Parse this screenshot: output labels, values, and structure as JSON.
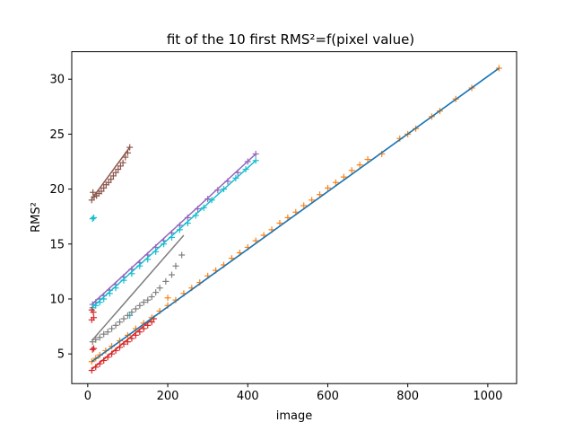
{
  "chart_data": {
    "type": "scatter",
    "title": "fit of the 10 first RMS²=f(pixel value)",
    "xlabel": "image",
    "ylabel": "RMS²",
    "xlim": [
      -40,
      1072
    ],
    "ylim": [
      2.3,
      32.5
    ],
    "xticks": [
      0,
      200,
      400,
      600,
      800,
      1000
    ],
    "yticks": [
      5,
      10,
      15,
      20,
      25,
      30
    ],
    "legend": "none",
    "grid": false,
    "series": [
      {
        "name": "series-brown",
        "color": "#8c564b",
        "fit": [
          [
            10,
            19.1
          ],
          [
            105,
            23.8
          ]
        ],
        "points": [
          [
            10,
            19.0
          ],
          [
            13,
            19.7
          ],
          [
            16,
            19.3
          ],
          [
            22,
            19.4
          ],
          [
            28,
            19.6
          ],
          [
            34,
            19.8
          ],
          [
            40,
            20.1
          ],
          [
            46,
            20.4
          ],
          [
            52,
            20.6
          ],
          [
            58,
            20.9
          ],
          [
            64,
            21.2
          ],
          [
            70,
            21.5
          ],
          [
            76,
            21.8
          ],
          [
            82,
            22.1
          ],
          [
            88,
            22.4
          ],
          [
            94,
            22.9
          ],
          [
            100,
            23.3
          ],
          [
            105,
            23.8
          ]
        ]
      },
      {
        "name": "series-purple",
        "color": "#9467bd",
        "fit": [
          [
            10,
            9.5
          ],
          [
            420,
            23.2
          ]
        ],
        "points": [
          [
            12,
            9.5
          ],
          [
            20,
            9.7
          ],
          [
            30,
            10.0
          ],
          [
            40,
            10.3
          ],
          [
            55,
            10.8
          ],
          [
            70,
            11.3
          ],
          [
            90,
            12.0
          ],
          [
            110,
            12.7
          ],
          [
            130,
            13.3
          ],
          [
            150,
            14.0
          ],
          [
            170,
            14.7
          ],
          [
            190,
            15.3
          ],
          [
            210,
            16.0
          ],
          [
            230,
            16.7
          ],
          [
            250,
            17.4
          ],
          [
            275,
            18.2
          ],
          [
            300,
            19.1
          ],
          [
            325,
            19.9
          ],
          [
            350,
            20.7
          ],
          [
            375,
            21.5
          ],
          [
            400,
            22.5
          ],
          [
            420,
            23.2
          ]
        ]
      },
      {
        "name": "series-cyan",
        "color": "#17becf",
        "fit": [
          [
            10,
            9.2
          ],
          [
            420,
            22.6
          ]
        ],
        "points": [
          [
            12,
            17.3
          ],
          [
            15,
            17.4
          ],
          [
            12,
            9.2
          ],
          [
            20,
            9.4
          ],
          [
            30,
            9.7
          ],
          [
            40,
            10.0
          ],
          [
            55,
            10.5
          ],
          [
            70,
            11.0
          ],
          [
            90,
            11.7
          ],
          [
            110,
            12.3
          ],
          [
            130,
            13.0
          ],
          [
            150,
            13.6
          ],
          [
            170,
            14.3
          ],
          [
            190,
            15.0
          ],
          [
            210,
            15.6
          ],
          [
            230,
            16.3
          ],
          [
            250,
            16.9
          ],
          [
            270,
            17.6
          ],
          [
            290,
            18.3
          ],
          [
            310,
            19.0
          ],
          [
            340,
            20.0
          ],
          [
            370,
            21.0
          ],
          [
            395,
            21.8
          ],
          [
            420,
            22.6
          ],
          [
            105,
            8.5
          ]
        ]
      },
      {
        "name": "series-gray",
        "color": "#7f7f7f",
        "fit": [
          [
            10,
            6.2
          ],
          [
            240,
            15.8
          ]
        ],
        "points": [
          [
            12,
            6.1
          ],
          [
            20,
            6.3
          ],
          [
            30,
            6.5
          ],
          [
            40,
            6.8
          ],
          [
            50,
            7.0
          ],
          [
            60,
            7.3
          ],
          [
            70,
            7.6
          ],
          [
            80,
            7.9
          ],
          [
            90,
            8.2
          ],
          [
            100,
            8.5
          ],
          [
            110,
            8.8
          ],
          [
            120,
            9.1
          ],
          [
            130,
            9.4
          ],
          [
            140,
            9.7
          ],
          [
            150,
            9.9
          ],
          [
            160,
            10.2
          ],
          [
            170,
            10.6
          ],
          [
            180,
            11.0
          ],
          [
            195,
            11.6
          ],
          [
            210,
            12.2
          ],
          [
            220,
            13.0
          ],
          [
            235,
            14.0
          ]
        ]
      },
      {
        "name": "series-red",
        "color": "#d62728",
        "fit": [
          [
            10,
            3.6
          ],
          [
            165,
            8.3
          ]
        ],
        "points": [
          [
            10,
            9.0
          ],
          [
            14,
            8.8
          ],
          [
            10,
            8.1
          ],
          [
            15,
            8.3
          ],
          [
            10,
            3.5
          ],
          [
            20,
            3.8
          ],
          [
            30,
            4.1
          ],
          [
            40,
            4.4
          ],
          [
            50,
            4.7
          ],
          [
            60,
            5.0
          ],
          [
            70,
            5.3
          ],
          [
            80,
            5.6
          ],
          [
            90,
            5.9
          ],
          [
            100,
            6.1
          ],
          [
            110,
            6.4
          ],
          [
            120,
            6.7
          ],
          [
            130,
            7.0
          ],
          [
            140,
            7.3
          ],
          [
            150,
            7.6
          ],
          [
            160,
            7.9
          ],
          [
            165,
            8.2
          ],
          [
            12,
            5.4
          ],
          [
            15,
            5.5
          ]
        ]
      },
      {
        "name": "series-orange",
        "color": "#ff7f0e",
        "fit": [
          [
            10,
            4.3
          ],
          [
            1028,
            31.0
          ]
        ],
        "points": [
          [
            10,
            4.3
          ],
          [
            20,
            4.6
          ],
          [
            30,
            4.9
          ],
          [
            45,
            5.3
          ],
          [
            60,
            5.7
          ],
          [
            80,
            6.2
          ],
          [
            100,
            6.7
          ],
          [
            120,
            7.3
          ],
          [
            140,
            7.8
          ],
          [
            160,
            8.3
          ],
          [
            180,
            8.9
          ],
          [
            200,
            9.4
          ],
          [
            220,
            9.9
          ],
          [
            240,
            10.5
          ],
          [
            260,
            11.0
          ],
          [
            280,
            11.5
          ],
          [
            300,
            12.1
          ],
          [
            320,
            12.6
          ],
          [
            340,
            13.1
          ],
          [
            360,
            13.7
          ],
          [
            380,
            14.2
          ],
          [
            400,
            14.7
          ],
          [
            420,
            15.3
          ],
          [
            440,
            15.8
          ],
          [
            460,
            16.3
          ],
          [
            480,
            16.9
          ],
          [
            500,
            17.4
          ],
          [
            520,
            17.9
          ],
          [
            540,
            18.5
          ],
          [
            560,
            19.0
          ],
          [
            580,
            19.5
          ],
          [
            600,
            20.1
          ],
          [
            620,
            20.6
          ],
          [
            640,
            21.1
          ],
          [
            660,
            21.7
          ],
          [
            680,
            22.2
          ],
          [
            700,
            22.7
          ],
          [
            735,
            23.2
          ],
          [
            780,
            24.6
          ],
          [
            800,
            25.0
          ],
          [
            820,
            25.5
          ],
          [
            860,
            26.6
          ],
          [
            880,
            27.1
          ],
          [
            920,
            28.2
          ],
          [
            960,
            29.2
          ],
          [
            1028,
            31.0
          ],
          [
            200,
            10.1
          ]
        ]
      },
      {
        "name": "series-blue-fit",
        "color": "#1f77b4",
        "fit": [
          [
            10,
            4.3
          ],
          [
            1028,
            31.0
          ]
        ],
        "points": []
      }
    ]
  }
}
